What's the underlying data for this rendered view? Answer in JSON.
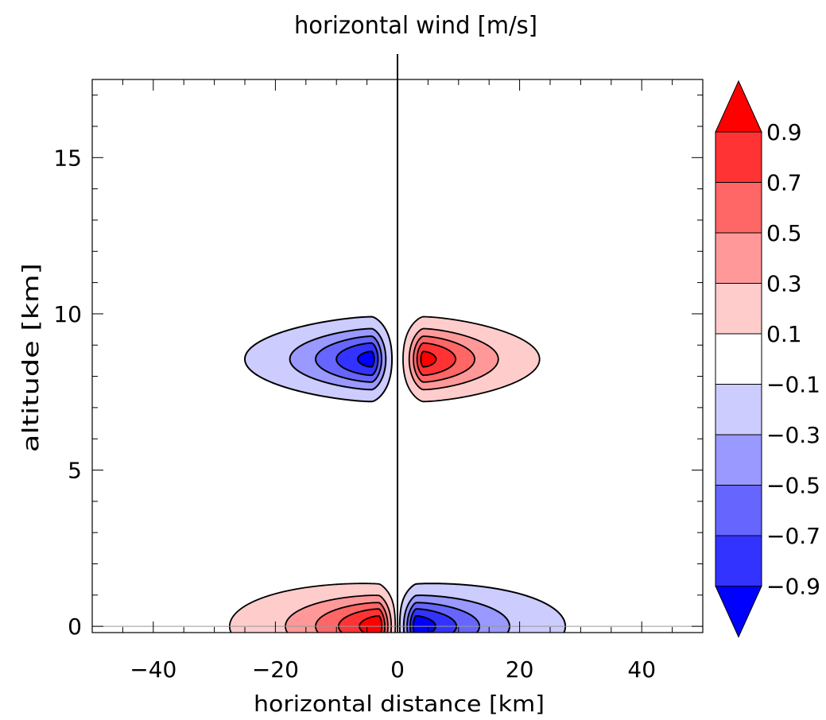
{
  "chart_data": {
    "type": "contour",
    "title": "horizontal wind [m/s]",
    "xlabel": "horizontal distance [km]",
    "ylabel": "altitude [km]",
    "xlim": [
      -50,
      50
    ],
    "ylim": [
      -0.2,
      17.5
    ],
    "x_ticks": [
      -40,
      -20,
      0,
      20,
      40
    ],
    "y_ticks": [
      0,
      5,
      10,
      15
    ],
    "x_tick_labels": [
      "−40",
      "−20",
      "0",
      "20",
      "40"
    ],
    "y_tick_labels": [
      "0",
      "5",
      "10",
      "15"
    ],
    "colorbar": {
      "levels": [
        -0.9,
        -0.7,
        -0.5,
        -0.3,
        -0.1,
        0.1,
        0.3,
        0.5,
        0.7,
        0.9
      ],
      "tick_labels": [
        "−0.9",
        "−0.7",
        "−0.5",
        "−0.3",
        "−0.1",
        "0.1",
        "0.3",
        "0.5",
        "0.7",
        "0.9"
      ],
      "colors": [
        "#0000ff",
        "#3333ff",
        "#6666ff",
        "#9999ff",
        "#ccccff",
        "#ffffff",
        "#ffcccc",
        "#ff9999",
        "#ff6666",
        "#ff3333",
        "#ff0000"
      ],
      "extend": "both"
    },
    "vertical_line_x": 0,
    "features": [
      {
        "sign": "negative",
        "center": [
          -4,
          8.5
        ],
        "extent_x": [
          -29,
          -1
        ],
        "extent_y": [
          7.3,
          9.9
        ],
        "min_value": -0.7
      },
      {
        "sign": "positive",
        "center": [
          4,
          8.55
        ],
        "extent_x": [
          1,
          24
        ],
        "extent_y": [
          7.3,
          10.0
        ],
        "max_value": 0.9
      },
      {
        "sign": "positive",
        "center": [
          -3,
          0
        ],
        "extent_x": [
          -32,
          -0.5
        ],
        "extent_y": [
          0,
          1.6
        ],
        "max_value": 0.9
      },
      {
        "sign": "negative",
        "center": [
          3,
          0
        ],
        "extent_x": [
          0.5,
          32
        ],
        "extent_y": [
          0,
          1.6
        ],
        "min_value": -0.9
      }
    ]
  }
}
